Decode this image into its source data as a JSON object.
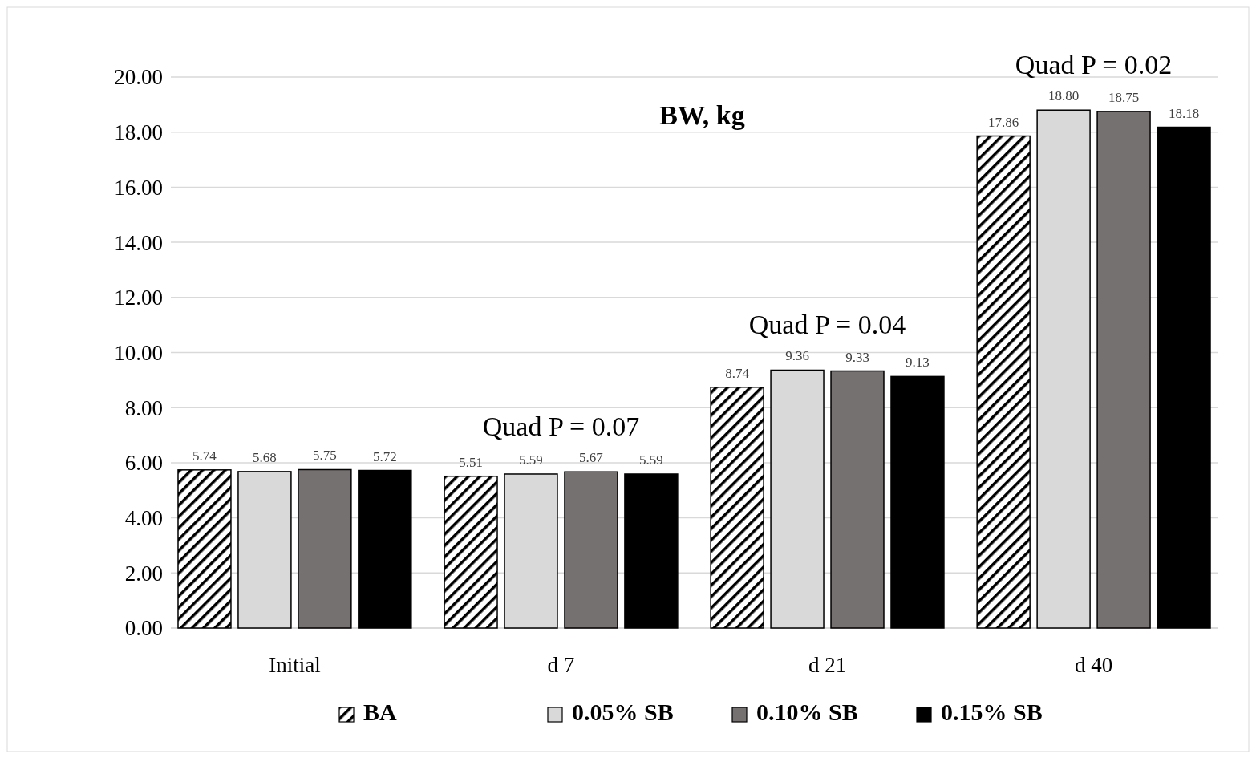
{
  "chart_data": {
    "type": "bar",
    "title": "BW, kg",
    "categories": [
      "Initial",
      "d 7",
      "d 21",
      "d 40"
    ],
    "series": [
      {
        "name": "BA",
        "color": "#000000",
        "values": [
          5.74,
          5.51,
          8.74,
          17.86
        ],
        "value_labels": [
          "5.74",
          "5.51",
          "8.74",
          "17.86"
        ]
      },
      {
        "name": "0.05% SB",
        "color": "#d9d9d9",
        "values": [
          5.68,
          5.59,
          9.36,
          18.8
        ],
        "value_labels": [
          "5.68",
          "5.59",
          "9.36",
          "18.80"
        ]
      },
      {
        "name": "0.10% SB",
        "color": "#767171",
        "values": [
          5.75,
          5.67,
          9.33,
          18.75
        ],
        "value_labels": [
          "5.75",
          "5.67",
          "9.33",
          "18.75"
        ]
      },
      {
        "name": "0.15% SB",
        "color": "#000000",
        "values": [
          5.72,
          5.59,
          9.13,
          18.18
        ],
        "value_labels": [
          "5.72",
          "5.59",
          "9.13",
          "18.18"
        ]
      }
    ],
    "ylim": [
      0,
      20
    ],
    "yticks": [
      {
        "value": 0,
        "label": "0.00"
      },
      {
        "value": 2,
        "label": "2.00"
      },
      {
        "value": 4,
        "label": "4.00"
      },
      {
        "value": 6,
        "label": "6.00"
      },
      {
        "value": 8,
        "label": "8.00"
      },
      {
        "value": 10,
        "label": "10.00"
      },
      {
        "value": 12,
        "label": "12.00"
      },
      {
        "value": 14,
        "label": "14.00"
      },
      {
        "value": 16,
        "label": "16.00"
      },
      {
        "value": 18,
        "label": "18.00"
      },
      {
        "value": 20,
        "label": "20.00"
      }
    ],
    "annotations": [
      "Quad P = 0.07",
      "Quad P = 0.04",
      "Quad P = 0.02"
    ],
    "grid": "y",
    "legend": "bottom"
  }
}
